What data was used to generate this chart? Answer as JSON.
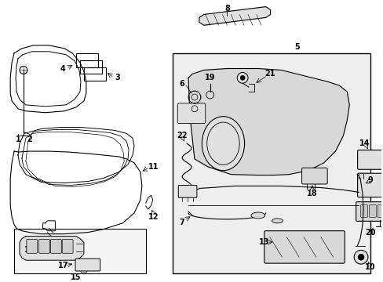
{
  "bg_color": "#ffffff",
  "line_color": "#000000",
  "fig_width": 4.89,
  "fig_height": 3.6,
  "dpi": 100,
  "gray_fill": "#e8e8e8",
  "light_gray": "#f0f0f0"
}
